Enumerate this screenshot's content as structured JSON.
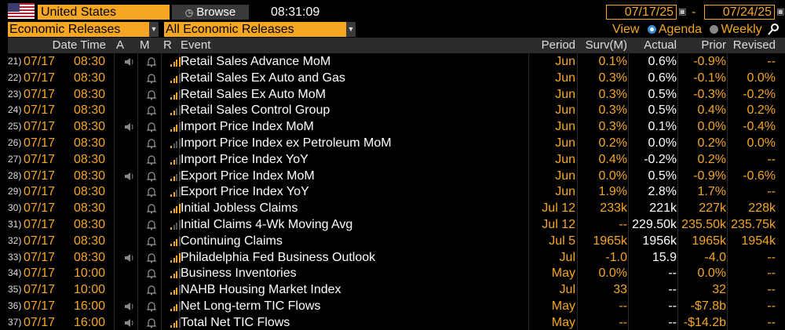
{
  "header": {
    "country": "United States",
    "browse_label": "Browse",
    "time": "08:31:09",
    "start_date": "07/17/25",
    "end_date": "07/24/25",
    "date_separator": "-",
    "filter1": "Economic Releases",
    "filter2": "All Economic Releases",
    "view_label": "View",
    "agenda_label": "Agenda",
    "weekly_label": "Weekly",
    "view_selected": "Agenda"
  },
  "columns": {
    "datetime": "Date Time",
    "a": "A",
    "m": "M",
    "r": "R",
    "event": "Event",
    "period": "Period",
    "survey": "Surv(M)",
    "actual": "Actual",
    "prior": "Prior",
    "revised": "Revised"
  },
  "colors": {
    "accent": "#f5a623",
    "header_bg": "#2c2c2c",
    "radio_on": "#3a8cd4"
  },
  "rows": [
    {
      "num": "21)",
      "date": "07/17",
      "time": "08:30",
      "alert": true,
      "relevance": 4,
      "event": "Retail Sales Advance MoM",
      "period": "Jun",
      "survey": "0.1%",
      "actual": "0.6%",
      "prior": "-0.9%",
      "revised": "--"
    },
    {
      "num": "22)",
      "date": "07/17",
      "time": "08:30",
      "alert": false,
      "relevance": 3,
      "event": "Retail Sales Ex Auto and Gas",
      "period": "Jun",
      "survey": "0.3%",
      "actual": "0.6%",
      "prior": "-0.1%",
      "revised": "0.0%"
    },
    {
      "num": "23)",
      "date": "07/17",
      "time": "08:30",
      "alert": false,
      "relevance": 3,
      "event": "Retail Sales Ex Auto MoM",
      "period": "Jun",
      "survey": "0.3%",
      "actual": "0.5%",
      "prior": "-0.3%",
      "revised": "-0.2%"
    },
    {
      "num": "24)",
      "date": "07/17",
      "time": "08:30",
      "alert": false,
      "relevance": 2,
      "event": "Retail Sales Control Group",
      "period": "Jun",
      "survey": "0.3%",
      "actual": "0.5%",
      "prior": "0.4%",
      "revised": "0.2%"
    },
    {
      "num": "25)",
      "date": "07/17",
      "time": "08:30",
      "alert": true,
      "relevance": 3,
      "event": "Import Price Index MoM",
      "period": "Jun",
      "survey": "0.3%",
      "actual": "0.1%",
      "prior": "0.0%",
      "revised": "-0.4%"
    },
    {
      "num": "26)",
      "date": "07/17",
      "time": "08:30",
      "alert": false,
      "relevance": 1,
      "event": "Import Price Index ex Petroleum MoM",
      "period": "Jun",
      "survey": "0.2%",
      "actual": "0.0%",
      "prior": "0.2%",
      "revised": "0.0%"
    },
    {
      "num": "27)",
      "date": "07/17",
      "time": "08:30",
      "alert": false,
      "relevance": 2,
      "event": "Import Price Index YoY",
      "period": "Jun",
      "survey": "0.4%",
      "actual": "-0.2%",
      "prior": "0.2%",
      "revised": "--"
    },
    {
      "num": "28)",
      "date": "07/17",
      "time": "08:30",
      "alert": true,
      "relevance": 2,
      "event": "Export Price Index MoM",
      "period": "Jun",
      "survey": "0.0%",
      "actual": "0.5%",
      "prior": "-0.9%",
      "revised": "-0.6%"
    },
    {
      "num": "29)",
      "date": "07/17",
      "time": "08:30",
      "alert": false,
      "relevance": 2,
      "event": "Export Price Index YoY",
      "period": "Jun",
      "survey": "1.9%",
      "actual": "2.8%",
      "prior": "1.7%",
      "revised": "--"
    },
    {
      "num": "30)",
      "date": "07/17",
      "time": "08:30",
      "alert": false,
      "relevance": 4,
      "event": "Initial Jobless Claims",
      "period": "Jul 12",
      "survey": "233k",
      "actual": "221k",
      "prior": "227k",
      "revised": "228k"
    },
    {
      "num": "31)",
      "date": "07/17",
      "time": "08:30",
      "alert": false,
      "relevance": 1,
      "event": "Initial Claims 4-Wk Moving Avg",
      "period": "Jul 12",
      "survey": "--",
      "actual": "229.50k",
      "prior": "235.50k",
      "revised": "235.75k"
    },
    {
      "num": "32)",
      "date": "07/17",
      "time": "08:30",
      "alert": false,
      "relevance": 3,
      "event": "Continuing Claims",
      "period": "Jul 5",
      "survey": "1965k",
      "actual": "1956k",
      "prior": "1965k",
      "revised": "1954k"
    },
    {
      "num": "33)",
      "date": "07/17",
      "time": "08:30",
      "alert": true,
      "relevance": 4,
      "event": "Philadelphia Fed Business Outlook",
      "period": "Jul",
      "survey": "-1.0",
      "actual": "15.9",
      "prior": "-4.0",
      "revised": "--"
    },
    {
      "num": "34)",
      "date": "07/17",
      "time": "10:00",
      "alert": false,
      "relevance": 3,
      "event": "Business Inventories",
      "period": "May",
      "survey": "0.0%",
      "actual": "--",
      "prior": "0.0%",
      "revised": "--"
    },
    {
      "num": "35)",
      "date": "07/17",
      "time": "10:00",
      "alert": false,
      "relevance": 3,
      "event": "NAHB Housing Market Index",
      "period": "Jul",
      "survey": "33",
      "actual": "--",
      "prior": "32",
      "revised": "--"
    },
    {
      "num": "36)",
      "date": "07/17",
      "time": "16:00",
      "alert": true,
      "relevance": 3,
      "event": "Net Long-term TIC Flows",
      "period": "May",
      "survey": "--",
      "actual": "--",
      "prior": "-$7.8b",
      "revised": "--"
    },
    {
      "num": "37)",
      "date": "07/17",
      "time": "16:00",
      "alert": true,
      "relevance": 3,
      "event": "Total Net TIC Flows",
      "period": "May",
      "survey": "--",
      "actual": "--",
      "prior": "-$14.2b",
      "revised": "--"
    }
  ]
}
